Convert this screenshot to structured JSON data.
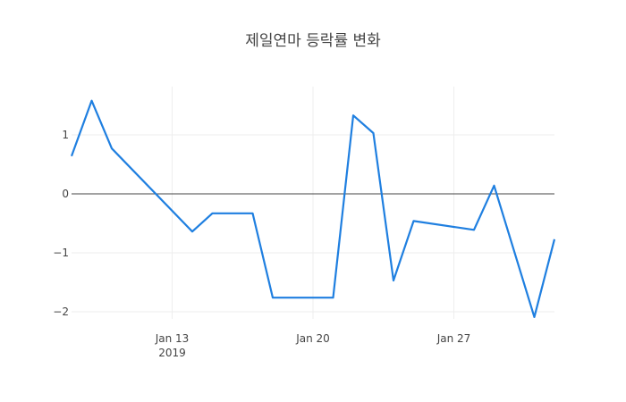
{
  "chart_data": {
    "type": "line",
    "title": "제일연마 등락률 변화",
    "xlabel": "",
    "ylabel": "",
    "x": [
      "2019-01-08",
      "2019-01-09",
      "2019-01-10",
      "2019-01-14",
      "2019-01-15",
      "2019-01-17",
      "2019-01-18",
      "2019-01-21",
      "2019-01-22",
      "2019-01-23",
      "2019-01-24",
      "2019-01-25",
      "2019-01-28",
      "2019-01-29",
      "2019-01-31",
      "2019-02-01"
    ],
    "series": [
      {
        "name": "등락률",
        "color": "#1f7fe0",
        "values": [
          0.64,
          1.58,
          0.77,
          -0.64,
          -0.33,
          -0.33,
          -1.76,
          -1.76,
          1.33,
          1.03,
          -1.47,
          -0.46,
          -0.61,
          0.14,
          -2.09,
          -0.77
        ]
      }
    ],
    "x_ticks": [
      {
        "label": "Jan 13",
        "sublabel": "2019",
        "date": "2019-01-13"
      },
      {
        "label": "Jan 20",
        "sublabel": "",
        "date": "2019-01-20"
      },
      {
        "label": "Jan 27",
        "sublabel": "",
        "date": "2019-01-27"
      }
    ],
    "y_ticks": [
      1,
      0,
      -1,
      -2
    ],
    "y_tick_labels": [
      "1",
      "0",
      "−1",
      "−2"
    ],
    "xlim": [
      "2019-01-08",
      "2019-02-01"
    ],
    "ylim": [
      -2.15,
      1.8
    ],
    "grid": true,
    "zeroline": true,
    "legend": false
  }
}
